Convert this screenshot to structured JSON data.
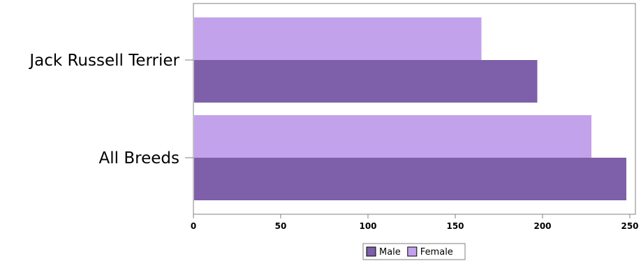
{
  "chart_data": {
    "type": "bar",
    "orientation": "horizontal",
    "categories": [
      "Jack Russell Terrier",
      "All Breeds"
    ],
    "series": [
      {
        "name": "Female",
        "values": [
          165,
          228
        ],
        "color": "#c3a2ec"
      },
      {
        "name": "Male",
        "values": [
          197,
          248
        ],
        "color": "#7e5fa9"
      }
    ],
    "xlim": [
      0,
      250
    ],
    "xticks": [
      0,
      50,
      100,
      150,
      200,
      250
    ],
    "title": "",
    "xlabel": "",
    "ylabel": "",
    "grid": false,
    "legend": {
      "placement": "bottom-center",
      "entries": [
        {
          "label": "Male",
          "color": "#7e5fa9"
        },
        {
          "label": "Female",
          "color": "#c3a2ec"
        }
      ]
    }
  }
}
